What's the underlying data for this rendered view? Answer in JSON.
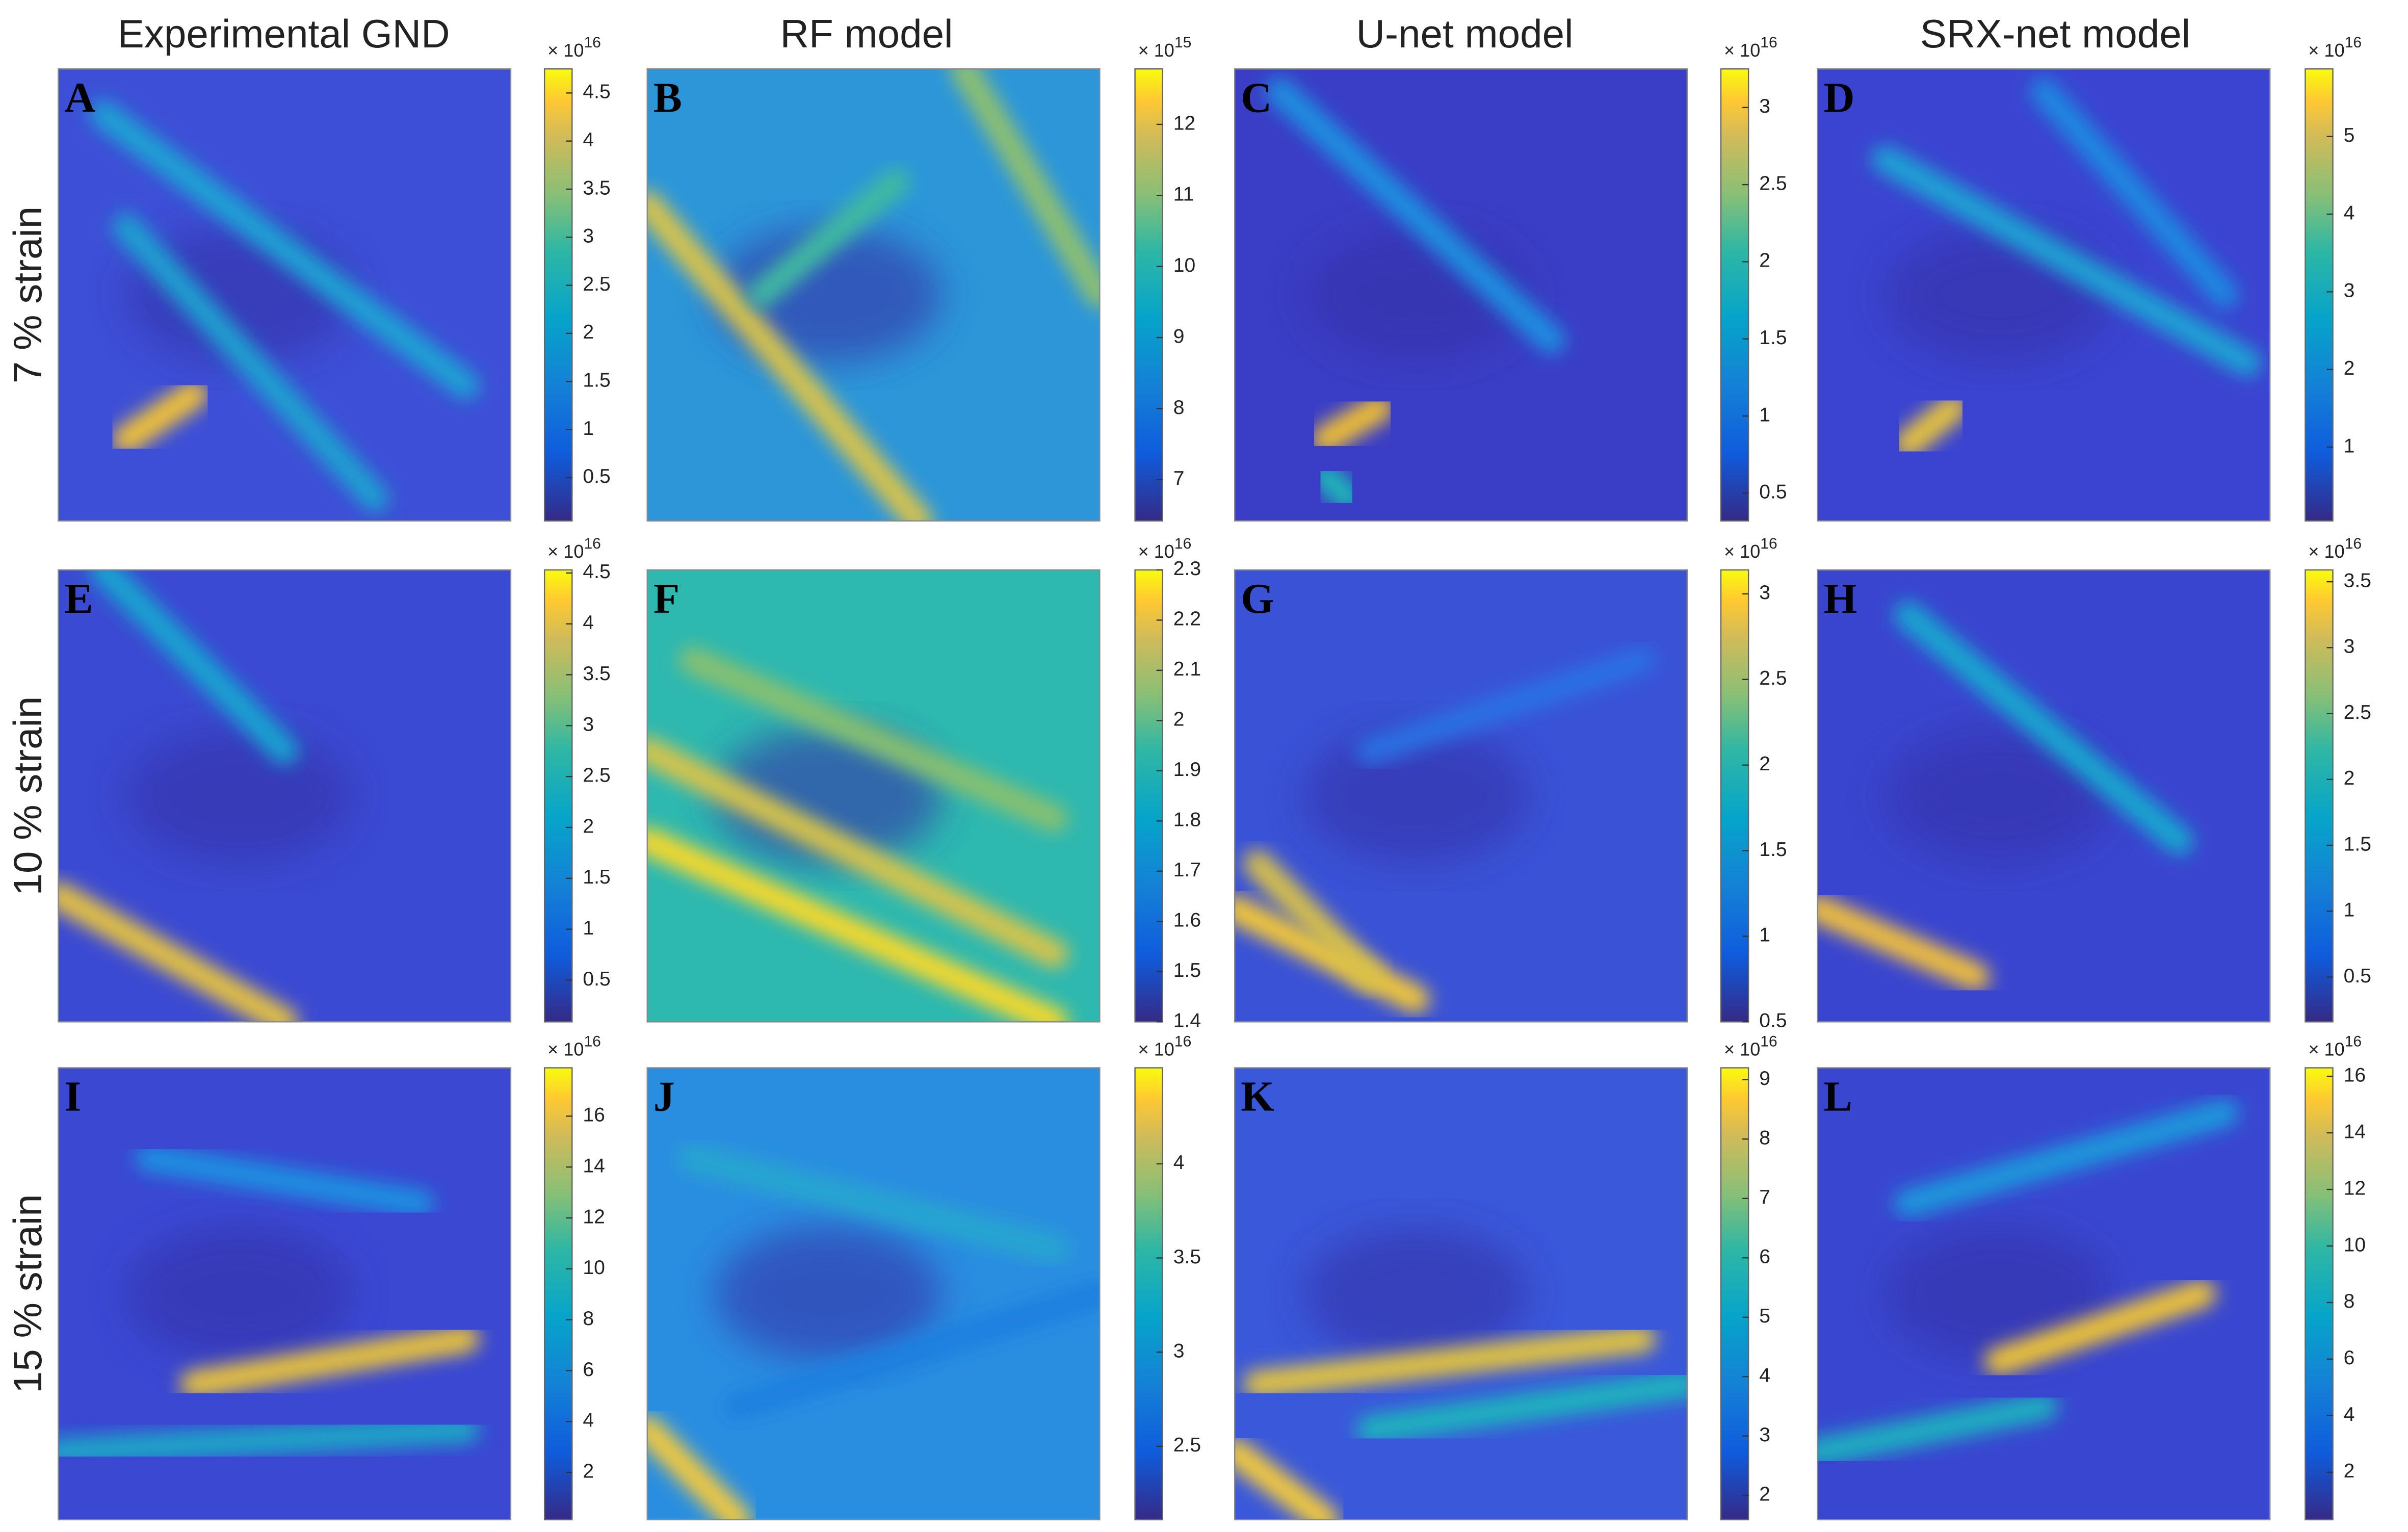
{
  "column_titles": [
    "Experimental GND",
    "RF model",
    "U-net model",
    "SRX-net model"
  ],
  "row_labels": [
    "7 % strain",
    "10 % strain",
    "15 % strain"
  ],
  "panels": [
    {
      "letter": "A",
      "colorbar": {
        "exponent_base": "× 10",
        "exponent": "16",
        "lim": [
          0.05,
          4.75
        ],
        "ticks": [
          0.5,
          1,
          1.5,
          2,
          2.5,
          3,
          3.5,
          4,
          4.5
        ]
      }
    },
    {
      "letter": "B",
      "colorbar": {
        "exponent_base": "× 10",
        "exponent": "15",
        "lim": [
          6.42,
          12.78
        ],
        "ticks": [
          7,
          8,
          9,
          10,
          11,
          12
        ]
      }
    },
    {
      "letter": "C",
      "colorbar": {
        "exponent_base": "× 10",
        "exponent": "16",
        "lim": [
          0.32,
          3.25
        ],
        "ticks": [
          0.5,
          1,
          1.5,
          2,
          2.5,
          3
        ]
      }
    },
    {
      "letter": "D",
      "colorbar": {
        "exponent_base": "× 10",
        "exponent": "16",
        "lim": [
          0.05,
          5.87
        ],
        "ticks": [
          1,
          2,
          3,
          4,
          5
        ]
      }
    },
    {
      "letter": "E",
      "colorbar": {
        "exponent_base": "× 10",
        "exponent": "16",
        "lim": [
          0.09,
          4.53
        ],
        "ticks": [
          0.5,
          1,
          1.5,
          2,
          2.5,
          3,
          3.5,
          4,
          4.5
        ]
      }
    },
    {
      "letter": "F",
      "colorbar": {
        "exponent_base": "× 10",
        "exponent": "16",
        "lim": [
          1.4,
          2.3
        ],
        "ticks": [
          1.4,
          1.5,
          1.6,
          1.7,
          1.8,
          1.9,
          2,
          2.1,
          2.2,
          2.3
        ]
      }
    },
    {
      "letter": "G",
      "colorbar": {
        "exponent_base": "× 10",
        "exponent": "16",
        "lim": [
          0.5,
          3.14
        ],
        "ticks": [
          0.5,
          1,
          1.5,
          2,
          2.5,
          3
        ]
      }
    },
    {
      "letter": "H",
      "colorbar": {
        "exponent_base": "× 10",
        "exponent": "16",
        "lim": [
          0.16,
          3.59
        ],
        "ticks": [
          0.5,
          1,
          1.5,
          2,
          2.5,
          3,
          3.5
        ]
      }
    },
    {
      "letter": "I",
      "colorbar": {
        "exponent_base": "× 10",
        "exponent": "16",
        "lim": [
          0.14,
          17.9
        ],
        "ticks": [
          2,
          4,
          6,
          8,
          10,
          12,
          14,
          16
        ]
      }
    },
    {
      "letter": "J",
      "colorbar": {
        "exponent_base": "× 10",
        "exponent": "16",
        "lim": [
          2.11,
          4.51
        ],
        "ticks": [
          2.5,
          3,
          3.5,
          4
        ]
      }
    },
    {
      "letter": "K",
      "colorbar": {
        "exponent_base": "× 10",
        "exponent": "16",
        "lim": [
          1.59,
          9.2
        ],
        "ticks": [
          2,
          3,
          4,
          5,
          6,
          7,
          8,
          9
        ]
      }
    },
    {
      "letter": "L",
      "colorbar": {
        "exponent_base": "× 10",
        "exponent": "16",
        "lim": [
          0.32,
          16.3
        ],
        "ticks": [
          2,
          4,
          6,
          8,
          10,
          12,
          14,
          16
        ]
      }
    }
  ]
}
